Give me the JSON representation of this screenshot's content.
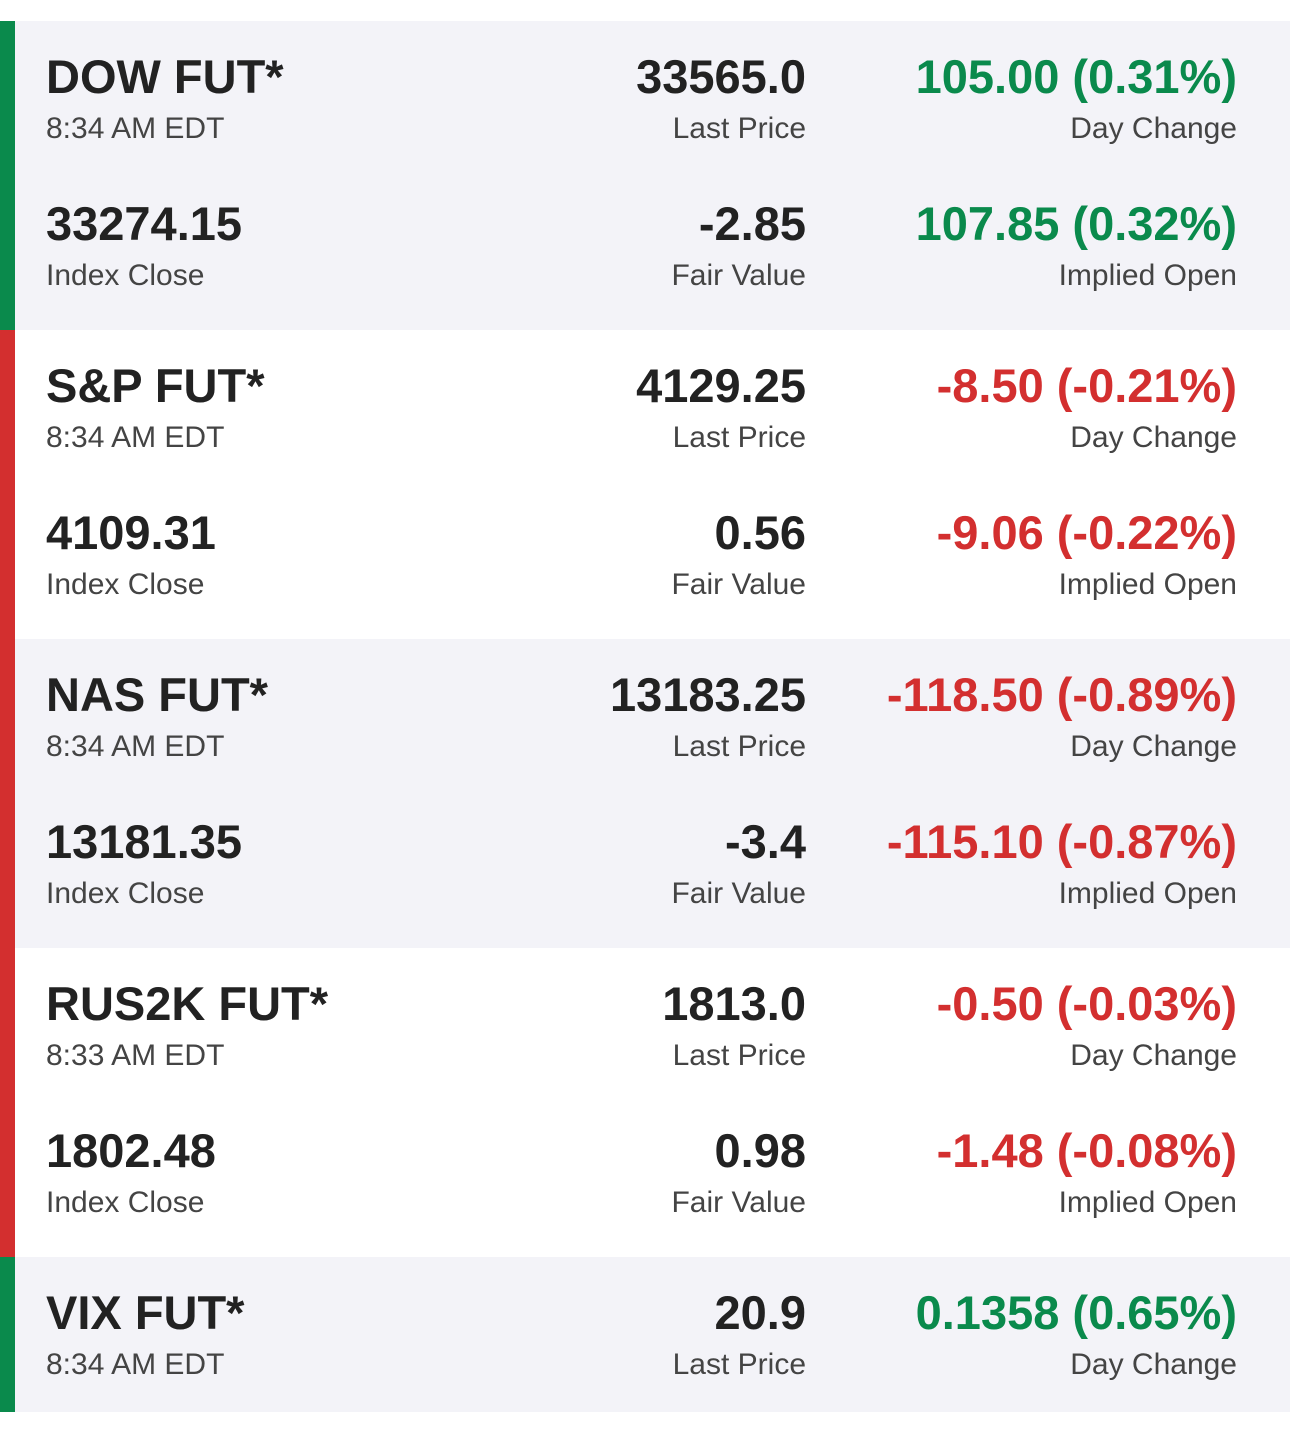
{
  "colors": {
    "up": "#0a8a4c",
    "down": "#d32f2f",
    "text": "#222222",
    "label": "#444444",
    "row_shade": "#f3f3f8"
  },
  "labels": {
    "last_price": "Last Price",
    "day_change": "Day Change",
    "index_close": "Index Close",
    "fair_value": "Fair Value",
    "implied_open": "Implied Open"
  },
  "futures": [
    {
      "name": "DOW FUT*",
      "time": "8:34 AM EDT",
      "last_price": "33565.0",
      "day_change": "105.00 (0.31%)",
      "day_direction": "up",
      "index_close": "33274.15",
      "fair_value": "-2.85",
      "implied_open": "107.85 (0.32%)",
      "implied_direction": "up",
      "accent": "up"
    },
    {
      "name": "S&P FUT*",
      "time": "8:34 AM EDT",
      "last_price": "4129.25",
      "day_change": "-8.50 (-0.21%)",
      "day_direction": "down",
      "index_close": "4109.31",
      "fair_value": "0.56",
      "implied_open": "-9.06 (-0.22%)",
      "implied_direction": "down",
      "accent": "down"
    },
    {
      "name": "NAS FUT*",
      "time": "8:34 AM EDT",
      "last_price": "13183.25",
      "day_change": "-118.50 (-0.89%)",
      "day_direction": "down",
      "index_close": "13181.35",
      "fair_value": "-3.4",
      "implied_open": "-115.10 (-0.87%)",
      "implied_direction": "down",
      "accent": "down"
    },
    {
      "name": "RUS2K FUT*",
      "time": "8:33 AM EDT",
      "last_price": "1813.0",
      "day_change": "-0.50 (-0.03%)",
      "day_direction": "down",
      "index_close": "1802.48",
      "fair_value": "0.98",
      "implied_open": "-1.48 (-0.08%)",
      "implied_direction": "down",
      "accent": "down"
    },
    {
      "name": "VIX FUT*",
      "time": "8:34 AM EDT",
      "last_price": "20.9",
      "day_change": "0.1358 (0.65%)",
      "day_direction": "up",
      "accent": "up"
    }
  ]
}
